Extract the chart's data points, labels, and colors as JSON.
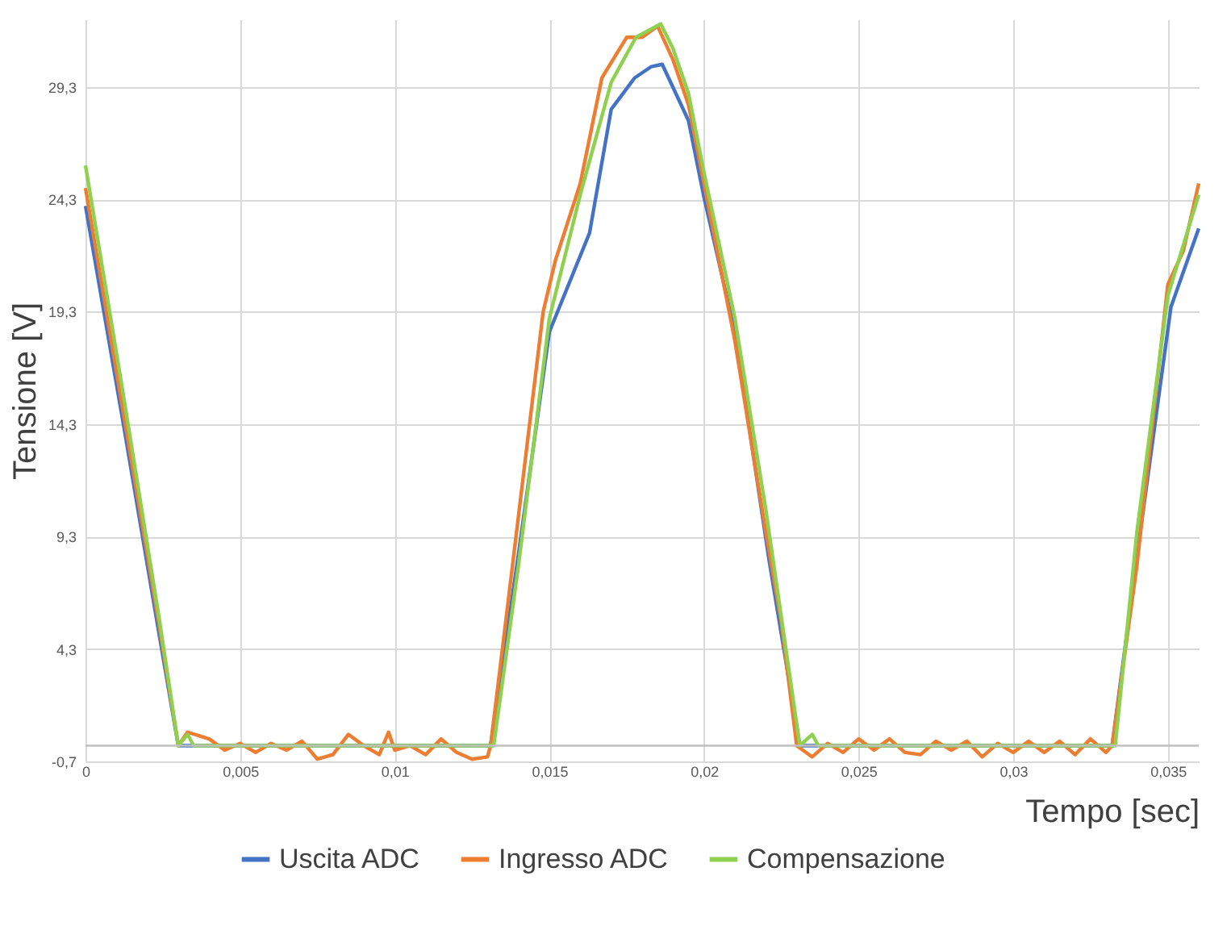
{
  "chart_data": {
    "type": "line",
    "xlabel": "Tempo [sec]",
    "ylabel": "Tensione [V]",
    "xlim": [
      0,
      0.036
    ],
    "ylim": [
      -0.7,
      32.3
    ],
    "xticks": [
      0,
      {
        "value": 0.005,
        "label": "0,005"
      },
      {
        "value": 0.01,
        "label": "0,01"
      },
      {
        "value": 0.015,
        "label": "0,015"
      },
      {
        "value": 0.02,
        "label": "0,02"
      },
      {
        "value": 0.025,
        "label": "0,025"
      },
      {
        "value": 0.03,
        "label": "0,03"
      },
      {
        "value": 0.035,
        "label": "0,035"
      }
    ],
    "yticks": [
      {
        "value": -0.7,
        "label": "-0,7"
      },
      {
        "value": 4.3,
        "label": "4,3"
      },
      {
        "value": 9.3,
        "label": "9,3"
      },
      {
        "value": 14.3,
        "label": "14,3"
      },
      {
        "value": 19.3,
        "label": "19,3"
      },
      {
        "value": 24.3,
        "label": "24,3"
      },
      {
        "value": 29.3,
        "label": "29,3"
      }
    ],
    "grid": true,
    "legend": "bottom",
    "marker": "none",
    "line_style": "solid",
    "ref_lines": [
      {
        "axis": "y",
        "value": 0,
        "color": "#bfbfbf"
      }
    ],
    "series": [
      {
        "name": "Uscita ADC",
        "color": "#4472c4",
        "x": [
          0,
          0.0012,
          0.0024,
          0.003,
          0.0131,
          0.014,
          0.015,
          0.0163,
          0.017,
          0.01776,
          0.0183,
          0.01865,
          0.0195,
          0.02,
          0.021,
          0.0221,
          0.0231,
          0.0332,
          0.0341,
          0.0351,
          0.036
        ],
        "values": [
          24.0,
          14.5,
          4.8,
          0,
          0,
          8.5,
          18.4,
          22.8,
          28.3,
          29.7,
          30.2,
          30.3,
          27.8,
          24.4,
          18.4,
          8.3,
          0,
          0,
          9.4,
          19.5,
          23.0
        ]
      },
      {
        "name": "Ingresso ADC",
        "color": "#ed7d31",
        "x": [
          0,
          0.0012,
          0.0024,
          0.003,
          0.0033,
          0.004,
          0.0045,
          0.005,
          0.0055,
          0.006,
          0.0065,
          0.007,
          0.0075,
          0.008,
          0.0085,
          0.009,
          0.0095,
          0.0098,
          0.01,
          0.0105,
          0.011,
          0.0115,
          0.012,
          0.0125,
          0.013,
          0.0131,
          0.0135,
          0.0148,
          0.0152,
          0.016,
          0.0167,
          0.0175,
          0.018,
          0.0185,
          0.019,
          0.0195,
          0.02,
          0.021,
          0.022,
          0.0225,
          0.023,
          0.0235,
          0.024,
          0.0245,
          0.025,
          0.0255,
          0.026,
          0.0265,
          0.027,
          0.0275,
          0.028,
          0.0285,
          0.029,
          0.0295,
          0.03,
          0.0305,
          0.031,
          0.0315,
          0.032,
          0.0325,
          0.033,
          0.0332,
          0.034,
          0.035,
          0.0355,
          0.036
        ],
        "values": [
          24.8,
          15.0,
          5.2,
          0,
          0.6,
          0.3,
          -0.2,
          0.1,
          -0.3,
          0.1,
          -0.2,
          0.2,
          -0.6,
          -0.4,
          0.5,
          0,
          -0.4,
          0.6,
          -0.2,
          0,
          -0.4,
          0.3,
          -0.3,
          -0.6,
          -0.5,
          0,
          4.5,
          19.3,
          21.6,
          25.0,
          29.7,
          31.5,
          31.5,
          32.0,
          30.5,
          28.5,
          25.0,
          18.0,
          9.5,
          5.5,
          0,
          -0.5,
          0.1,
          -0.3,
          0.3,
          -0.2,
          0.3,
          -0.3,
          -0.4,
          0.2,
          -0.2,
          0.2,
          -0.5,
          0.1,
          -0.3,
          0.2,
          -0.3,
          0.2,
          -0.4,
          0.3,
          -0.3,
          0,
          8.0,
          20.5,
          22.0,
          25.0
        ]
      },
      {
        "name": "Compensazione",
        "color": "#8fd14f",
        "x": [
          0,
          0.0012,
          0.0024,
          0.003,
          0.0033,
          0.0035,
          0.0132,
          0.014,
          0.015,
          0.016,
          0.017,
          0.0178,
          0.0186,
          0.019,
          0.0195,
          0.02,
          0.021,
          0.022,
          0.0231,
          0.0235,
          0.0237,
          0.0333,
          0.034,
          0.035,
          0.036
        ],
        "values": [
          25.8,
          15.8,
          5.5,
          0,
          0.5,
          0,
          0,
          8.0,
          19.0,
          24.5,
          29.5,
          31.5,
          32.1,
          31.0,
          29.0,
          25.5,
          19.0,
          10.5,
          0,
          0.5,
          0,
          0,
          9.5,
          20.0,
          24.5
        ]
      }
    ]
  }
}
